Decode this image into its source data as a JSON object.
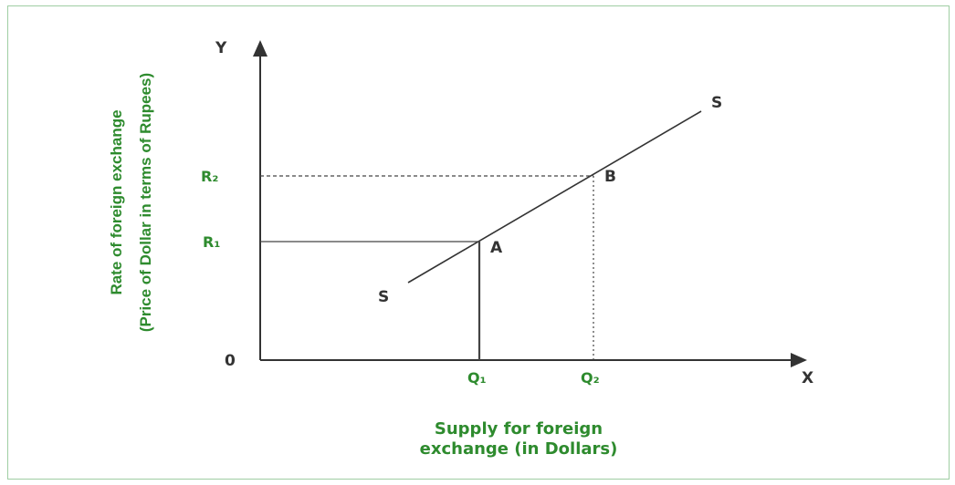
{
  "diagram": {
    "axis_x_letter": "X",
    "axis_y_letter": "Y",
    "origin_label": "0",
    "y_axis_label_line1": "Rate of foreign exchange",
    "y_axis_label_line2": "(Price of Dollar in terms of Rupees)",
    "x_axis_label_line1": "Supply for foreign",
    "x_axis_label_line2": "exchange (in Dollars)",
    "curve_label_top": "S",
    "curve_label_bottom": "S",
    "point_a": "A",
    "point_b": "B",
    "r1_label": "R₁",
    "r2_label": "R₂",
    "q1_label": "Q₁",
    "q2_label": "Q₂"
  },
  "colors": {
    "label_green": "#2e8b2e",
    "line_dark": "#333333",
    "frame_green": "#9fcea3"
  }
}
